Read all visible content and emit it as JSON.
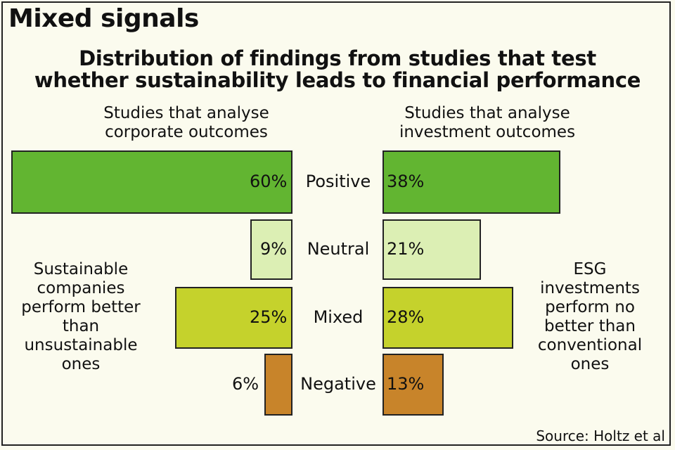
{
  "header": {
    "title": "Mixed signals",
    "subtitle_line1": "Distribution of findings from studies that test",
    "subtitle_line2": "whether sustainability leads to financial performance"
  },
  "columns": {
    "left": "Studies that analyse corporate outcomes",
    "right": "Studies that analyse investment outcomes"
  },
  "notes": {
    "left": "Sustainable companies perform better than unsustainable ones",
    "right": "ESG investments perform no better than conventional ones"
  },
  "source": "Source: Holtz et al",
  "chart_data": {
    "type": "bar",
    "categories": [
      "Positive",
      "Neutral",
      "Mixed",
      "Negative"
    ],
    "series": [
      {
        "name": "Studies that analyse corporate outcomes",
        "values": [
          60,
          9,
          25,
          6
        ],
        "labels": [
          "60%",
          "9%",
          "25%",
          "6%"
        ]
      },
      {
        "name": "Studies that analyse investment outcomes",
        "values": [
          38,
          21,
          28,
          13
        ],
        "labels": [
          "38%",
          "21%",
          "28%",
          "13%"
        ]
      }
    ],
    "colors": [
      "#62b531",
      "#dcefb4",
      "#c5d22c",
      "#c8842a"
    ],
    "unit": "%"
  }
}
